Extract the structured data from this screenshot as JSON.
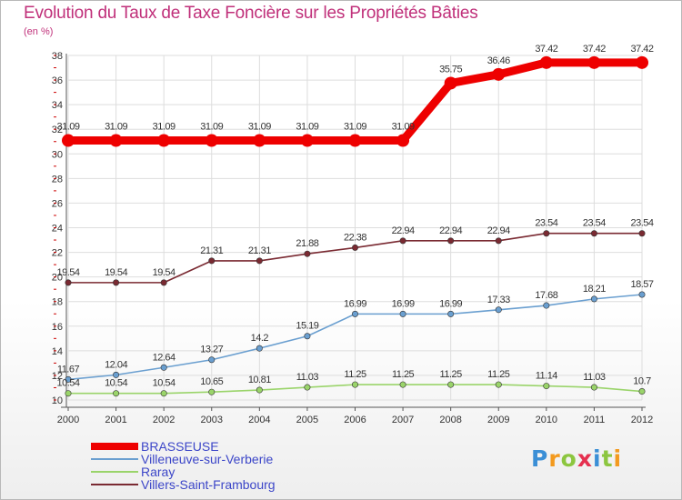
{
  "header": {
    "title": "Evolution du Taux de Taxe Foncière sur les Propriétés Bâties",
    "subtitle": "(en %)"
  },
  "logo": {
    "text": "Proxiti",
    "letter_colors": [
      "#3b8fd6",
      "#f39a1e",
      "#8cc63f",
      "#e5304f",
      "#3b8fd6",
      "#8cc63f",
      "#f39a1e"
    ]
  },
  "chart_data": {
    "type": "line",
    "title": "Evolution du Taux de Taxe Foncière sur les Propriétés Bâties",
    "ylabel": "(en %)",
    "xlabel": "",
    "x": [
      "2000",
      "2001",
      "2002",
      "2003",
      "2004",
      "2005",
      "2006",
      "2007",
      "2008",
      "2009",
      "2010",
      "2011",
      "2012"
    ],
    "ylim": [
      10,
      38
    ],
    "yticks": [
      "10",
      "12",
      "14",
      "16",
      "18",
      "20",
      "22",
      "24",
      "26",
      "28",
      "30",
      "32",
      "34",
      "36",
      "38"
    ],
    "grid": true,
    "legend_position": "bottom-left",
    "series": [
      {
        "name": "BRASSEUSE",
        "color": "#ee0000",
        "values": [
          31.09,
          31.09,
          31.09,
          31.09,
          31.09,
          31.09,
          31.09,
          31.09,
          35.75,
          36.46,
          37.42,
          37.42,
          37.42
        ],
        "labels": [
          "31.09",
          "31.09",
          "31.09",
          "31.09",
          "31.09",
          "31.09",
          "31.09",
          "31.09",
          "35.75",
          "36.46",
          "37.42",
          "37.42",
          "37.42"
        ]
      },
      {
        "name": "Villeneuve-sur-Verberie",
        "color": "#6a9fd0",
        "values": [
          11.67,
          12.04,
          12.64,
          13.27,
          14.2,
          15.19,
          16.99,
          16.99,
          16.99,
          17.33,
          17.68,
          18.21,
          18.57
        ],
        "labels": [
          "11.67",
          "12.04",
          "12.64",
          "13.27",
          "14.2",
          "15.19",
          "16.99",
          "16.99",
          "16.99",
          "17.33",
          "17.68",
          "18.21",
          "18.57"
        ]
      },
      {
        "name": "Raray",
        "color": "#9ad46a",
        "values": [
          10.54,
          10.54,
          10.54,
          10.65,
          10.81,
          11.03,
          11.25,
          11.25,
          11.25,
          11.25,
          11.14,
          11.03,
          10.7
        ],
        "labels": [
          "10.54",
          "10.54",
          "10.54",
          "10.65",
          "10.81",
          "11.03",
          "11.25",
          "11.25",
          "11.25",
          "11.25",
          "11.14",
          "11.03",
          "10.7"
        ]
      },
      {
        "name": "Villers-Saint-Frambourg",
        "color": "#7a2a32",
        "values": [
          19.54,
          19.54,
          19.54,
          21.31,
          21.31,
          21.88,
          22.38,
          22.94,
          22.94,
          22.94,
          23.54,
          23.54,
          23.54
        ],
        "labels": [
          "19.54",
          "19.54",
          "19.54",
          "21.31",
          "21.31",
          "21.88",
          "22.38",
          "22.94",
          "22.94",
          "22.94",
          "23.54",
          "23.54",
          "23.54"
        ]
      }
    ]
  }
}
